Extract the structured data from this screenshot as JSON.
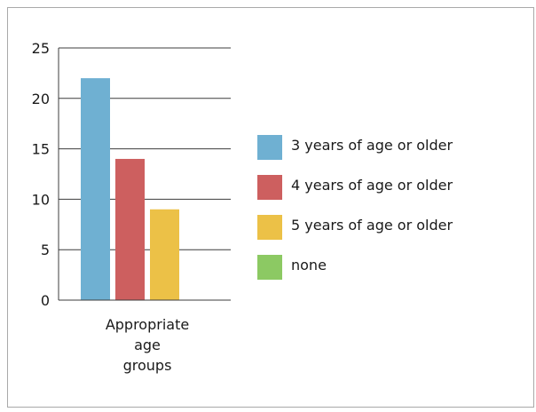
{
  "chart_data": {
    "type": "bar",
    "categories": [
      "Appropriate\nage\ngroups"
    ],
    "series": [
      {
        "name": "3 years of age or older",
        "values": [
          22
        ],
        "color": "#6fb0d2"
      },
      {
        "name": "4 years of age or older",
        "values": [
          14
        ],
        "color": "#cd5f5f"
      },
      {
        "name": "5 years of age or older",
        "values": [
          9
        ],
        "color": "#ecc147"
      },
      {
        "name": "none",
        "values": [
          0
        ],
        "color": "#8cc963"
      }
    ],
    "yticks": [
      0,
      5,
      10,
      15,
      20,
      25
    ],
    "ylim": [
      0,
      25
    ],
    "grid": true,
    "legend_position": "right",
    "title": "",
    "xlabel": "",
    "ylabel": ""
  }
}
